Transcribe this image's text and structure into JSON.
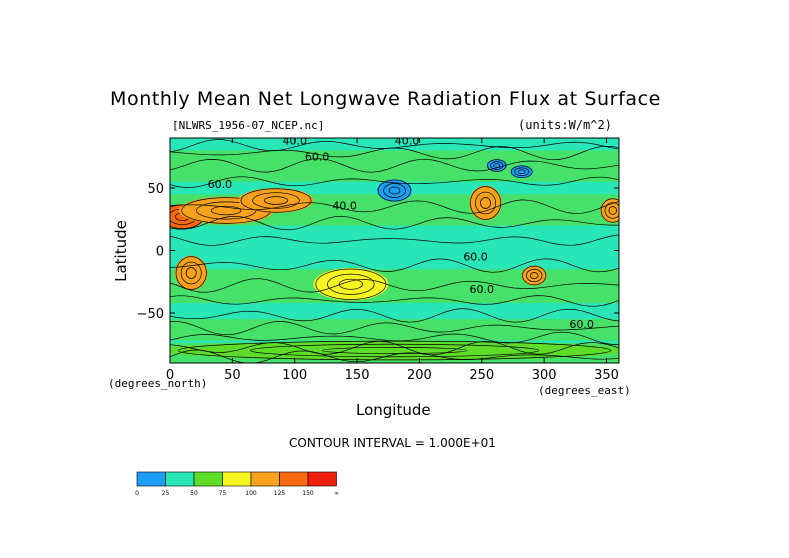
{
  "chart_data": {
    "type": "heatmap",
    "title": "Monthly Mean Net Longwave Radiation Flux at Surface",
    "subtitle": "[NLWRS_1956-07_NCEP.nc]",
    "units": "(units:W/m^2)",
    "xlabel": "Longitude",
    "ylabel": "Latitude",
    "x_units": "(degrees_east)",
    "y_units": "(degrees_north)",
    "xlim": [
      0,
      360
    ],
    "ylim": [
      -90,
      90
    ],
    "x_ticks": [
      0,
      50,
      100,
      150,
      200,
      250,
      300,
      350
    ],
    "y_ticks": [
      -50,
      0,
      50
    ],
    "contour_interval": "CONTOUR INTERVAL = 1.000E+01",
    "contour_labels": [
      {
        "text": "40.0",
        "x": 100,
        "y": 85
      },
      {
        "text": "40.0",
        "x": 190,
        "y": 85
      },
      {
        "text": "60.0",
        "x": 118,
        "y": 72
      },
      {
        "text": "60.0",
        "x": 40,
        "y": 50
      },
      {
        "text": "40.0",
        "x": 140,
        "y": 33
      },
      {
        "text": "60.0",
        "x": 245,
        "y": -8
      },
      {
        "text": "60.0",
        "x": 250,
        "y": -34
      },
      {
        "text": "60.0",
        "x": 330,
        "y": -62
      }
    ],
    "colorbar": {
      "ticks": [
        "0",
        "25",
        "50",
        "75",
        "100",
        "125",
        "150",
        "∞"
      ],
      "colors": [
        "#1f9ef5",
        "#29e6b8",
        "#5ddc28",
        "#f7f51f",
        "#f7a11c",
        "#f86a11",
        "#f01e0c"
      ]
    },
    "regions": [
      {
        "label": "low_flux",
        "value": 12,
        "lon": 180,
        "lat": 48,
        "rx": 14,
        "ry": 9
      },
      {
        "label": "low_flux",
        "value": 12,
        "lon": 282,
        "lat": 63,
        "rx": 9,
        "ry": 5
      },
      {
        "label": "low_flux",
        "value": 12,
        "lon": 262,
        "lat": 68,
        "rx": 8,
        "ry": 5
      },
      {
        "label": "west_africa_high",
        "value": 145,
        "lon": 10,
        "lat": 27,
        "rx": 18,
        "ry": 10
      },
      {
        "label": "sahara_high",
        "value": 120,
        "lon": 45,
        "lat": 32,
        "rx": 38,
        "ry": 11
      },
      {
        "label": "asia_high",
        "value": 110,
        "lon": 85,
        "lat": 40,
        "rx": 30,
        "ry": 10
      },
      {
        "label": "north_america_high",
        "value": 110,
        "lon": 253,
        "lat": 38,
        "rx": 13,
        "ry": 14
      },
      {
        "label": "east_high",
        "value": 105,
        "lon": 355,
        "lat": 32,
        "rx": 10,
        "ry": 10
      },
      {
        "label": "south_america_high",
        "value": 105,
        "lon": 17,
        "lat": -18,
        "rx": 13,
        "ry": 14
      },
      {
        "label": "australia_high",
        "value": 90,
        "lon": 145,
        "lat": -27,
        "rx": 30,
        "ry": 13
      },
      {
        "label": "south_africa_high",
        "value": 100,
        "lon": 292,
        "lat": -20,
        "rx": 10,
        "ry": 8
      },
      {
        "label": "antarctic_belt",
        "value": 60,
        "lon": 180,
        "lat": -80,
        "rx": 185,
        "ry": 8
      }
    ]
  }
}
